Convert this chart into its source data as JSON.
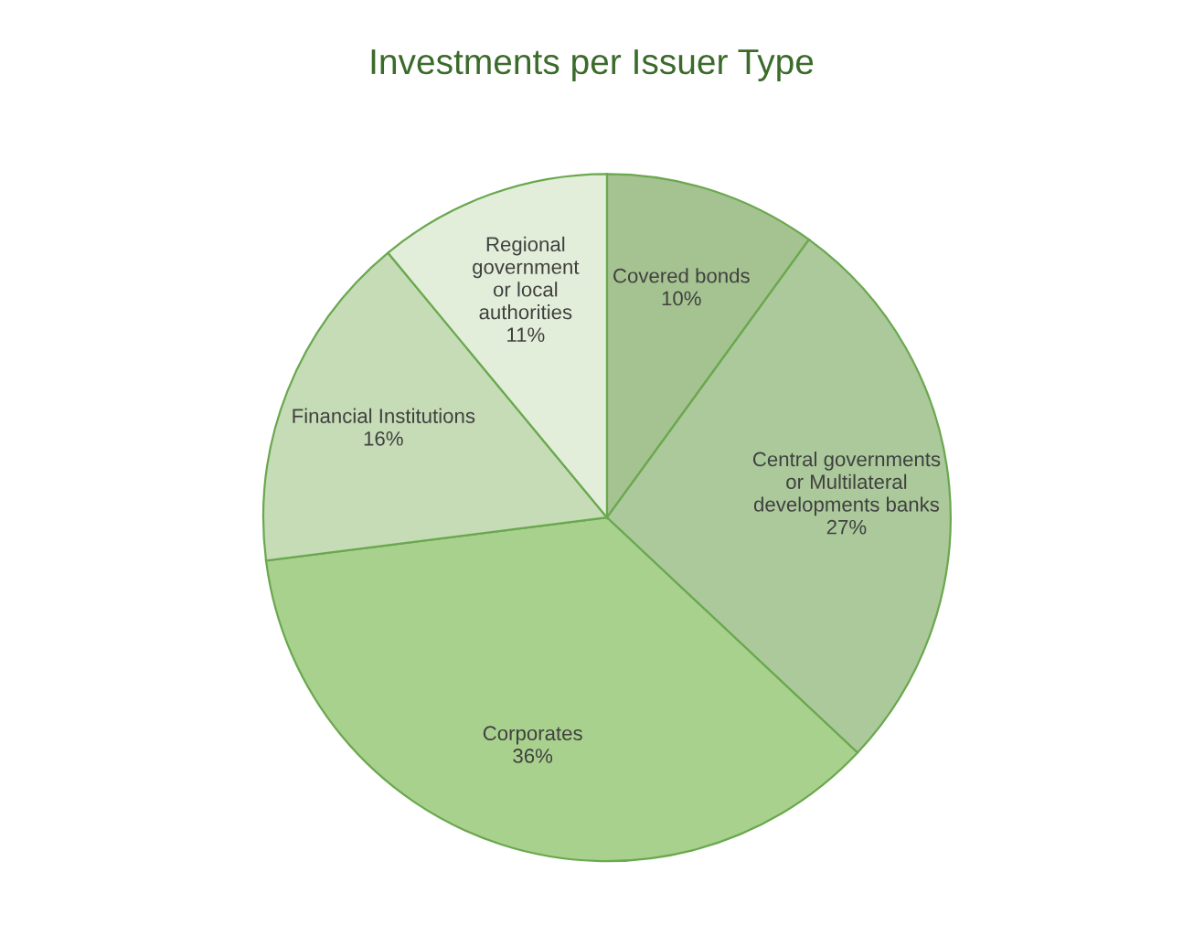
{
  "chart_data": {
    "type": "pie",
    "title": "Investments per Issuer Type",
    "categories": [
      "Covered bonds",
      "Central governments\nor Multilateral\ndevelopments banks",
      "Corporates",
      "Financial Institutions",
      "Regional\ngovernment\nor local\nauthorities"
    ],
    "values": [
      10,
      27,
      36,
      16,
      11
    ],
    "colors": [
      "#a5c291",
      "#abc99a",
      "#a9d18e",
      "#c5dcb6",
      "#e2eed9"
    ],
    "value_labels": [
      "10%",
      "27%",
      "36%",
      "16%",
      "11%"
    ],
    "legend": false
  }
}
